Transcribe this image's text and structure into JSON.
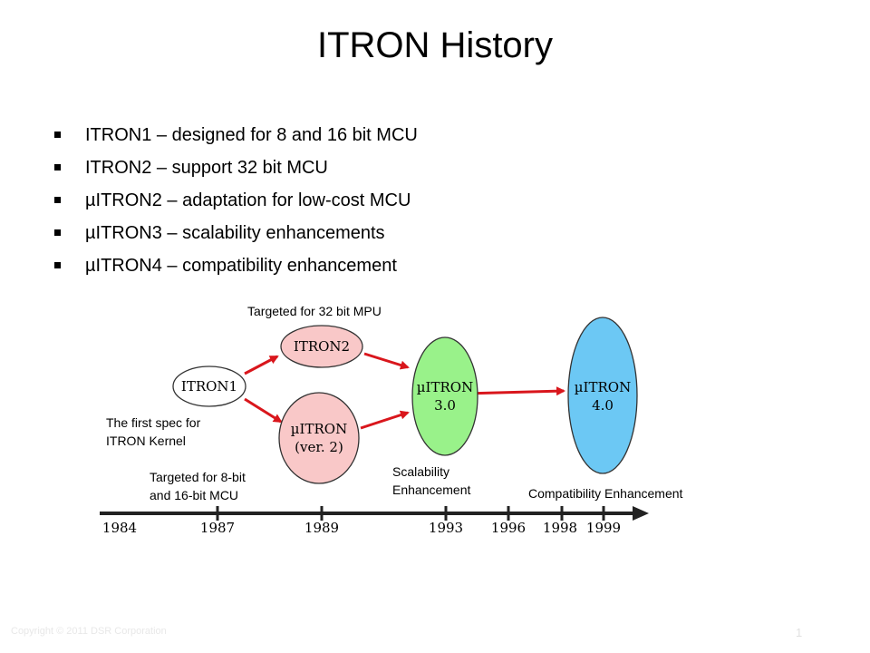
{
  "title": "ITRON History",
  "bullets": [
    "ITRON1 – designed for 8 and 16 bit MCU",
    "ITRON2 – support 32 bit MCU",
    "µITRON2 – adaptation for low-cost MCU",
    "µITRON3 – scalability enhancements",
    "µITRON4 – compatibility enhancement"
  ],
  "annotations": {
    "targeted_32": "Targeted for 32 bit MPU",
    "first_spec_1": "The first spec for",
    "first_spec_2": "ITRON Kernel",
    "targeted_8_1": "Targeted for 8-bit",
    "targeted_8_2": "and 16-bit MCU",
    "scalability_1": "Scalability",
    "scalability_2": "Enhancement",
    "compatibility": "Compatibility Enhancement"
  },
  "nodes": {
    "itron1": "ITRON1",
    "itron2": "ITRON2",
    "uitron_ver2_1": "µITRON",
    "uitron_ver2_2": "(ver. 2)",
    "uitron3_1": "µITRON",
    "uitron3_2": "3.0",
    "uitron4_1": "µITRON",
    "uitron4_2": "4.0"
  },
  "timeline_years": [
    "1984",
    "1987",
    "1989",
    "1993",
    "1996",
    "1998",
    "1999"
  ],
  "footer": "Copyright © 2011 DSR Corporation",
  "page_number": "1",
  "colors": {
    "itron2_fill": "#f9c8c8",
    "uitron_ver2_fill": "#f9c8c8",
    "uitron3_fill": "#99f28a",
    "uitron4_fill": "#6cc8f4",
    "arrow": "#d9161c"
  }
}
